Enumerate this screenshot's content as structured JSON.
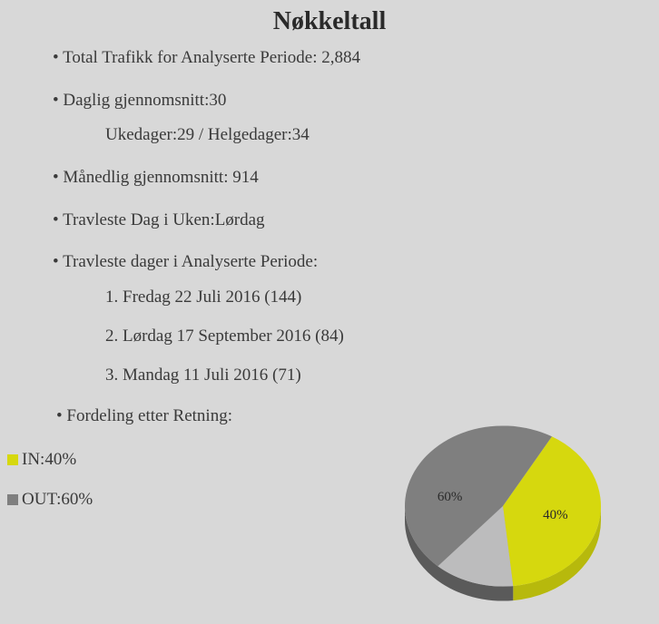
{
  "title": "Nøkkeltall",
  "stats": {
    "total_traffic": "Total Trafikk for Analyserte Periode: 2,884",
    "daily_avg": "Daglig gjennomsnitt:30",
    "daily_breakdown": "Ukedager:29 / Helgedager:34",
    "monthly_avg": "Månedlig gjennomsnitt: 914",
    "busiest_weekday": "Travleste Dag i Uken:Lørdag",
    "busiest_period_label": "Travleste dager i Analyserte Periode:",
    "busiest_days": [
      "1. Fredag 22 Juli 2016 (144)",
      "2. Lørdag 17  September 2016 (84)",
      "3. Mandag 11 Juli 2016 (71)"
    ],
    "direction_label": "Fordeling etter Retning:"
  },
  "legend": {
    "in": {
      "label": "IN:40%",
      "color": "#d6d80e"
    },
    "out": {
      "label": "OUT:60%",
      "color": "#7f7f7f"
    }
  },
  "pie": {
    "type": "pie",
    "slices": [
      {
        "name": "IN",
        "value": 40,
        "label": "40%",
        "color": "#d6d80e",
        "side_color": "#b7b90c"
      },
      {
        "name": "OUT",
        "value": 60,
        "label": "60%",
        "color": "#7f7f7f",
        "side_color": "#5a5a5a"
      }
    ],
    "start_angle_deg": -60,
    "background": "#d8d8d8",
    "tilt": 0.82,
    "depth": 16,
    "radius": 108,
    "label_fontsize": 15,
    "highlight_color": "#efeff0"
  }
}
